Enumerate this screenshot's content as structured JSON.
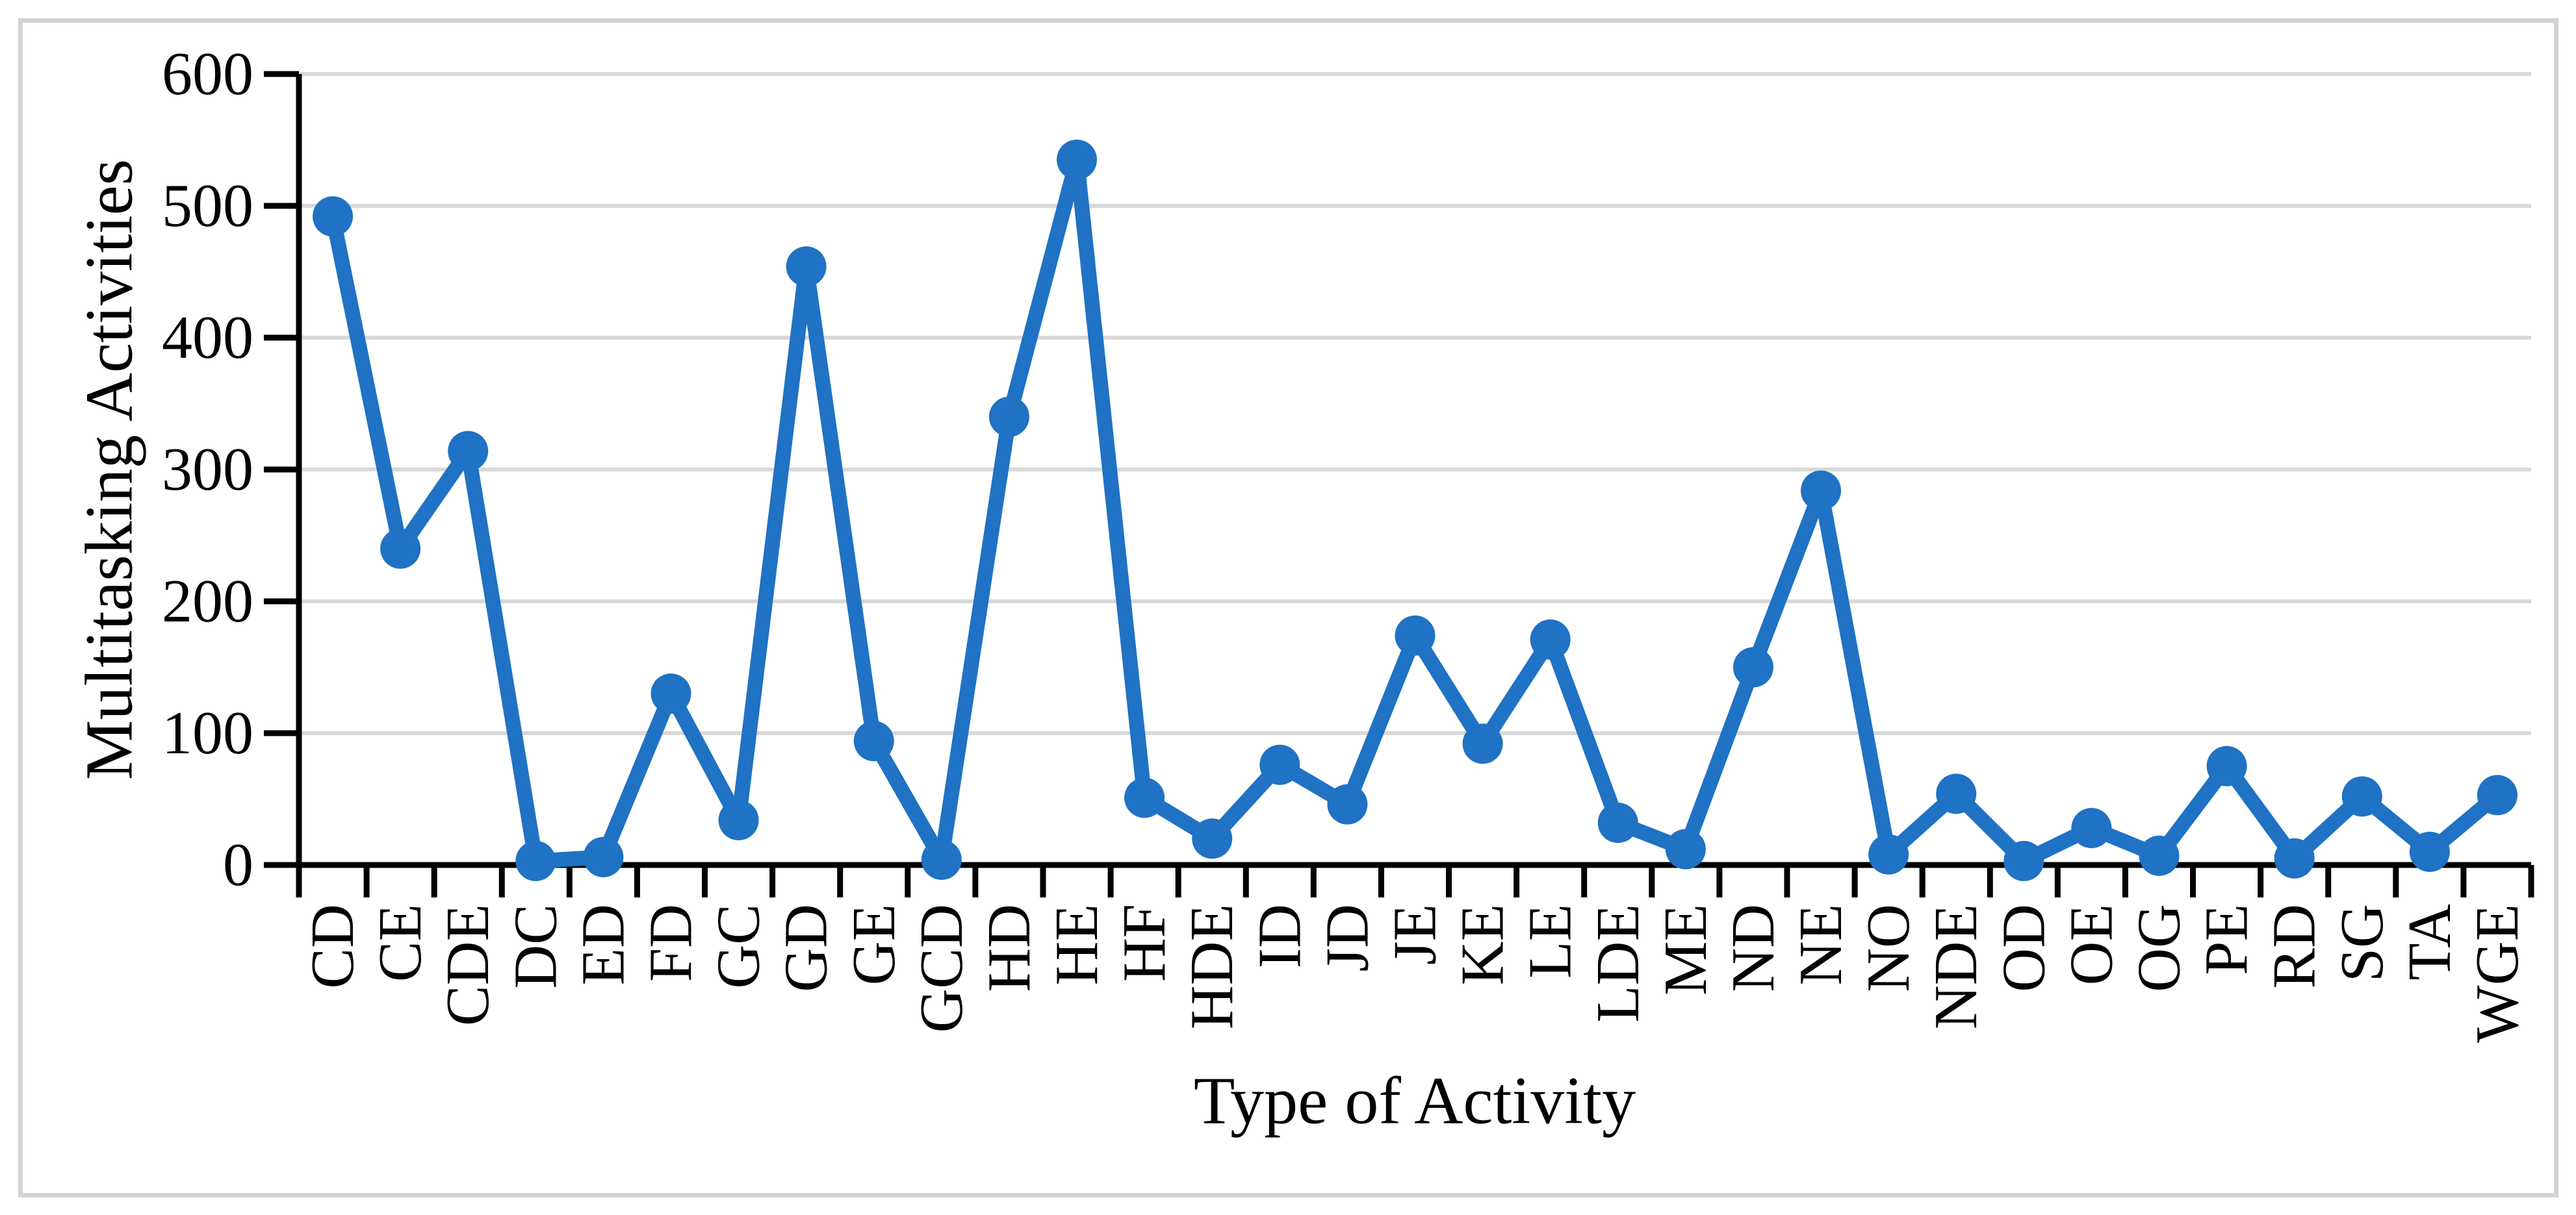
{
  "chart_data": {
    "type": "line",
    "title": "",
    "xlabel": "Type of Activity",
    "ylabel": "Multitasking Activities",
    "categories": [
      "CD",
      "CE",
      "CDE",
      "DC",
      "ED",
      "FD",
      "GC",
      "GD",
      "GE",
      "GCD",
      "HD",
      "HE",
      "HF",
      "HDE",
      "ID",
      "JD",
      "JE",
      "KE",
      "LE",
      "LDE",
      "ME",
      "ND",
      "NE",
      "NO",
      "NDE",
      "OD",
      "OE",
      "OG",
      "PE",
      "RD",
      "SG",
      "TA",
      "WGE"
    ],
    "values": [
      492,
      240,
      314,
      3,
      6,
      130,
      34,
      454,
      94,
      4,
      340,
      535,
      51,
      20,
      76,
      46,
      174,
      92,
      171,
      32,
      12,
      150,
      284,
      8,
      54,
      3,
      28,
      7,
      75,
      5,
      52,
      10,
      53
    ],
    "ylim": [
      0,
      600
    ],
    "yticks": [
      0,
      100,
      200,
      300,
      400,
      500,
      600
    ],
    "grid": true,
    "legend": "none",
    "marker": "circle",
    "colors": {
      "line": "#1F72C4",
      "marker": "#1F72C4",
      "gridline": "#D9D9D9",
      "axis": "#000000",
      "frame_border": "#D3D3D3",
      "background": "#FFFFFF"
    }
  }
}
